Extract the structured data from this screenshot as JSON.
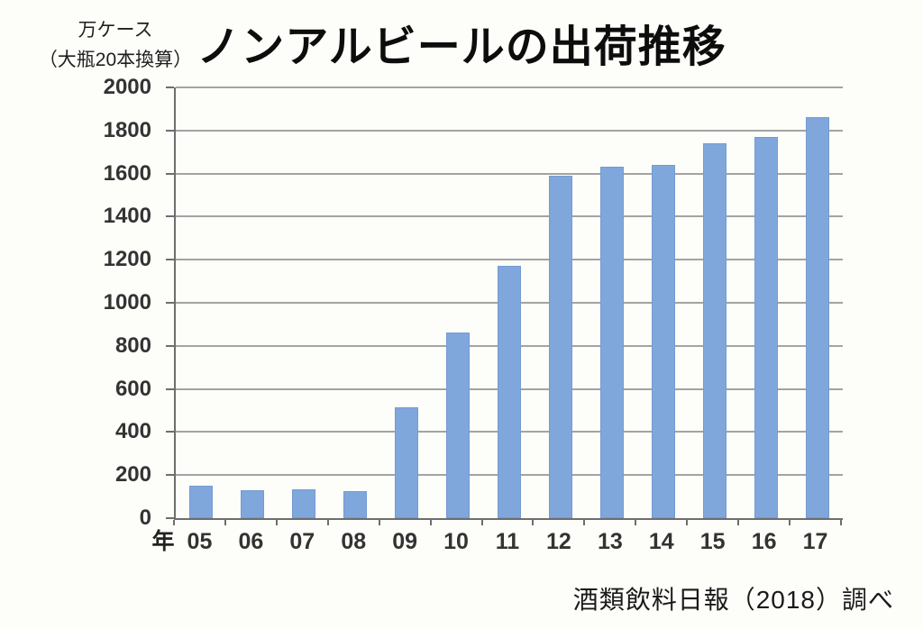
{
  "title": "ノンアルビールの出荷推移",
  "y_axis_unit": {
    "line1": "万ケース",
    "line2": "（大瓶20本換算）"
  },
  "x_axis_prefix": "年",
  "source": "酒類飲料日報（2018）調べ",
  "colors": {
    "bar": "#7fa7db",
    "bar_border": "#749bd1",
    "gridline": "#a3a3a3",
    "axis": "#6e6e6e",
    "text": "#333333",
    "background": "#fdfdfa"
  },
  "chart_data": {
    "type": "bar",
    "title": "ノンアルビールの出荷推移",
    "categories": [
      "05",
      "06",
      "07",
      "08",
      "09",
      "10",
      "11",
      "12",
      "13",
      "14",
      "15",
      "16",
      "17"
    ],
    "values": [
      150,
      130,
      135,
      125,
      515,
      860,
      1170,
      1590,
      1630,
      1640,
      1740,
      1770,
      1860
    ],
    "xlabel": "年",
    "ylabel": "万ケース（大瓶20本換算）",
    "ylim": [
      0,
      2000
    ],
    "ytick_step": 200,
    "grid": true,
    "legend": false,
    "source": "酒類飲料日報（2018）調べ"
  }
}
